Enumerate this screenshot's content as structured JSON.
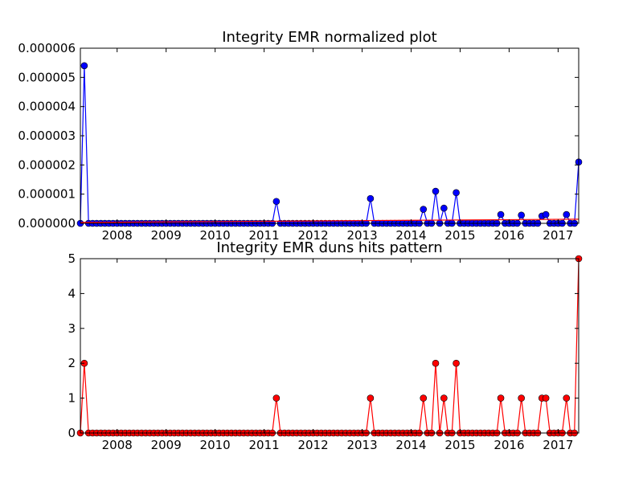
{
  "figure": {
    "background": "#ffffff"
  },
  "chart_data": [
    {
      "type": "line",
      "title": "Integrity EMR normalized plot",
      "xlabel": "",
      "ylabel": "",
      "xlim": [
        2007.25,
        2017.42
      ],
      "ylim": [
        0,
        6e-06
      ],
      "x_ticks": [
        2008,
        2009,
        2010,
        2011,
        2012,
        2013,
        2014,
        2015,
        2016,
        2017
      ],
      "x_tick_labels": [
        "2008",
        "2009",
        "2010",
        "2011",
        "2012",
        "2013",
        "2014",
        "2015",
        "2016",
        "2017"
      ],
      "y_ticks": [
        0,
        1e-06,
        2e-06,
        3e-06,
        4e-06,
        5e-06,
        6e-06
      ],
      "y_tick_labels": [
        "0.000000",
        "0.000001",
        "0.000002",
        "0.000003",
        "0.000004",
        "0.000005",
        "0.000006"
      ],
      "grid": false,
      "legend": "none",
      "series": [
        {
          "kind": "line-markers",
          "color": "#0000ff",
          "marker": "circle",
          "start": 2007.25,
          "step": 0.0833333,
          "count": 123,
          "default_value": 0,
          "nonzero": [
            [
              2007.33,
              5.4e-06
            ],
            [
              2011.25,
              7.5e-07
            ],
            [
              2013.17,
              8.5e-07
            ],
            [
              2014.25,
              4.8e-07
            ],
            [
              2014.5,
              1.1e-06
            ],
            [
              2014.67,
              5.2e-07
            ],
            [
              2014.92,
              1.05e-06
            ],
            [
              2015.83,
              3e-07
            ],
            [
              2016.25,
              2.8e-07
            ],
            [
              2016.67,
              2.5e-07
            ],
            [
              2016.75,
              3e-07
            ],
            [
              2017.17,
              3e-07
            ],
            [
              2017.42,
              2.1e-06
            ]
          ]
        },
        {
          "kind": "trend-line",
          "color": "#ff0000",
          "x": [
            2007.25,
            2017.42
          ],
          "y": [
            3e-08,
            1.4e-07
          ]
        }
      ]
    },
    {
      "type": "line",
      "title": "Integrity EMR duns hits pattern",
      "xlabel": "",
      "ylabel": "",
      "xlim": [
        2007.25,
        2017.42
      ],
      "ylim": [
        0,
        5
      ],
      "x_ticks": [
        2008,
        2009,
        2010,
        2011,
        2012,
        2013,
        2014,
        2015,
        2016,
        2017
      ],
      "x_tick_labels": [
        "2008",
        "2009",
        "2010",
        "2011",
        "2012",
        "2013",
        "2014",
        "2015",
        "2016",
        "2017"
      ],
      "y_ticks": [
        0,
        1,
        2,
        3,
        4,
        5
      ],
      "y_tick_labels": [
        "0",
        "1",
        "2",
        "3",
        "4",
        "5"
      ],
      "grid": false,
      "legend": "none",
      "series": [
        {
          "kind": "line-markers",
          "color": "#ff0000",
          "marker": "circle",
          "start": 2007.25,
          "step": 0.0833333,
          "count": 123,
          "default_value": 0,
          "nonzero": [
            [
              2007.33,
              2
            ],
            [
              2011.25,
              1
            ],
            [
              2013.17,
              1
            ],
            [
              2014.25,
              1
            ],
            [
              2014.5,
              2
            ],
            [
              2014.67,
              1
            ],
            [
              2014.92,
              2
            ],
            [
              2015.83,
              1
            ],
            [
              2016.25,
              1
            ],
            [
              2016.67,
              1
            ],
            [
              2016.75,
              1
            ],
            [
              2017.17,
              1
            ],
            [
              2017.42,
              5
            ]
          ]
        }
      ]
    }
  ]
}
